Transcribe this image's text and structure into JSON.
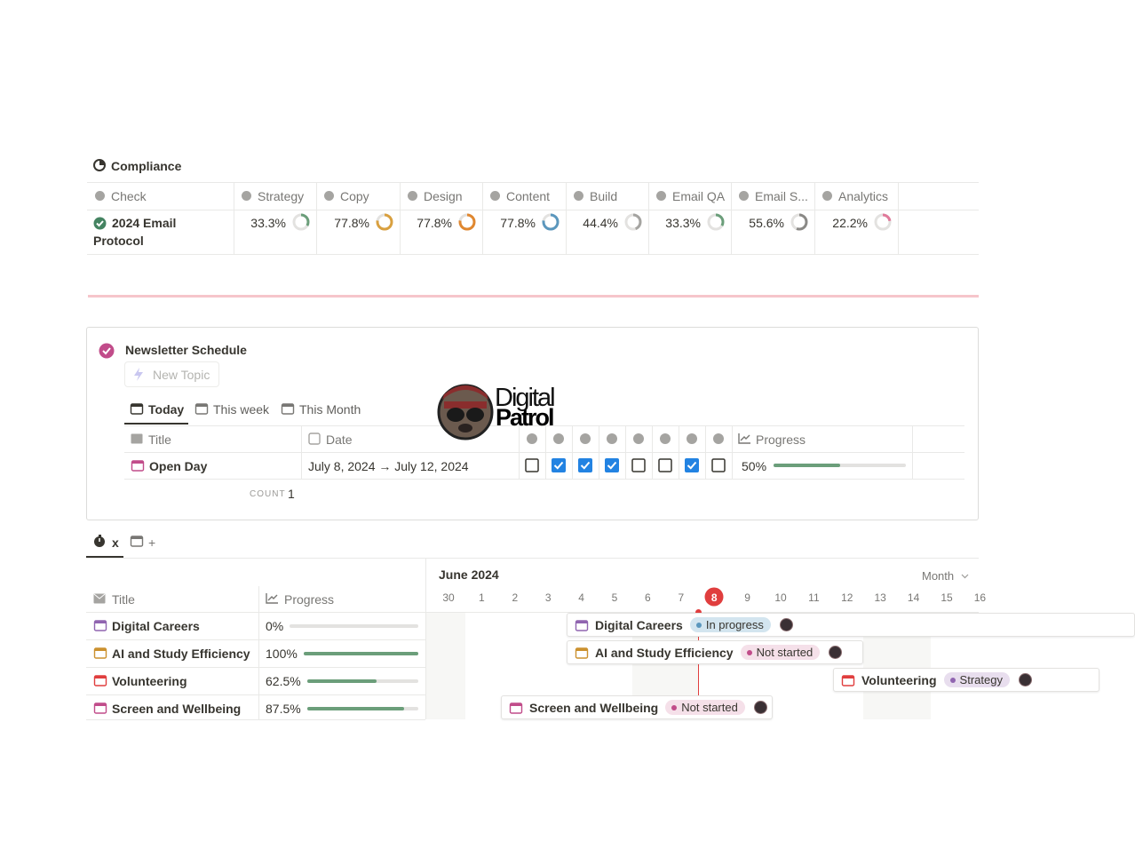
{
  "compliance": {
    "title": "Compliance",
    "columns": [
      "Check",
      "Strategy",
      "Copy",
      "Design",
      "Content",
      "Build",
      "Email QA",
      "Email S...",
      "Analytics"
    ],
    "ring_colors": [
      "#6b9e7a",
      "#d9a03f",
      "#e0872f",
      "#5b97bd",
      "#a5a4a1",
      "#6b9e7a",
      "#8a8986",
      "#e07a9a"
    ],
    "rows": [
      {
        "check": "2024 Email Protocol",
        "values": [
          33.3,
          77.8,
          77.8,
          77.8,
          44.4,
          33.3,
          55.6,
          22.2
        ],
        "value_labels": [
          "33.3%",
          "77.8%",
          "77.8%",
          "77.8%",
          "44.4%",
          "33.3%",
          "55.6%",
          "22.2%"
        ]
      }
    ]
  },
  "schedule": {
    "title": "Newsletter Schedule",
    "new_button": "New Topic",
    "tabs": [
      "Today",
      "This week",
      "This Month"
    ],
    "columns": [
      "Title",
      "Date",
      "Progress"
    ],
    "rows": [
      {
        "title": "Open Day",
        "date": "July 8, 2024 → July 12, 2024",
        "checks": [
          false,
          true,
          true,
          true,
          false,
          false,
          true,
          false
        ],
        "progress": 50,
        "progress_label": "50%"
      }
    ],
    "count_label": "COUNT",
    "count": 1
  },
  "logo": {
    "line1": "Digital",
    "line2": "Patrol"
  },
  "timeline": {
    "tabs": [
      "x",
      "+"
    ],
    "columns": [
      "Title",
      "Progress"
    ],
    "month": "June 2024",
    "scale": "Month",
    "days": [
      30,
      1,
      2,
      3,
      4,
      5,
      6,
      7,
      8,
      9,
      10,
      11,
      12,
      13,
      14,
      15,
      16
    ],
    "today": 8,
    "rows": [
      {
        "title": "Digital Careers",
        "progress": 0,
        "progress_label": "0%",
        "status": "In progress",
        "icon_color": "#9065b0",
        "status_bg": "#d3e5ef",
        "status_dot": "#5b97bd"
      },
      {
        "title": "AI and Study Efficiency",
        "progress": 100,
        "progress_label": "100%",
        "status": "Not started",
        "icon_color": "#cb912f",
        "status_bg": "#f5e0e9",
        "status_dot": "#c14c8a"
      },
      {
        "title": "Volunteering",
        "progress": 62.5,
        "progress_label": "62.5%",
        "status": "Strategy",
        "icon_color": "#e03e3e",
        "status_bg": "#e8deee",
        "status_dot": "#9065b0"
      },
      {
        "title": "Screen and Wellbeing",
        "progress": 87.5,
        "progress_label": "87.5%",
        "status": "Not started",
        "icon_color": "#c14c8a",
        "status_bg": "#f5e0e9",
        "status_dot": "#c14c8a"
      }
    ]
  }
}
